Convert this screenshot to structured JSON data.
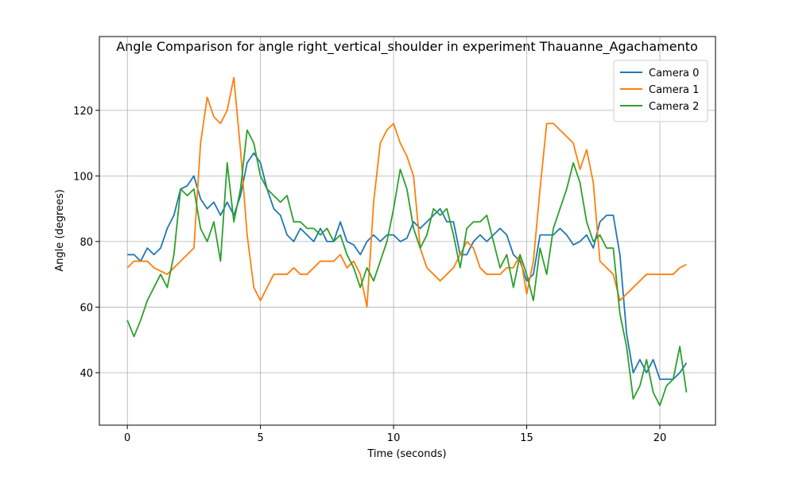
{
  "chart_data": {
    "type": "line",
    "title": "Angle Comparison for angle right_vertical_shoulder in experiment Thauanne_Agachamento",
    "x_label": "Time (seconds)",
    "y_label": "Angle (degrees)",
    "x": [
      0,
      0.25,
      0.5,
      0.75,
      1,
      1.25,
      1.5,
      1.75,
      2,
      2.25,
      2.5,
      2.75,
      3,
      3.25,
      3.5,
      3.75,
      4,
      4.25,
      4.5,
      4.75,
      5,
      5.25,
      5.5,
      5.75,
      6,
      6.25,
      6.5,
      6.75,
      7,
      7.25,
      7.5,
      7.75,
      8,
      8.25,
      8.5,
      8.75,
      9,
      9.25,
      9.5,
      9.75,
      10,
      10.25,
      10.5,
      10.75,
      11,
      11.25,
      11.5,
      11.75,
      12,
      12.25,
      12.5,
      12.75,
      13,
      13.25,
      13.5,
      13.75,
      14,
      14.25,
      14.5,
      14.75,
      15,
      15.25,
      15.5,
      15.75,
      16,
      16.25,
      16.5,
      16.75,
      17,
      17.25,
      17.5,
      17.75,
      18,
      18.25,
      18.5,
      18.75,
      19,
      19.25,
      19.5,
      19.75,
      20,
      20.25,
      20.5,
      20.75,
      21
    ],
    "series": [
      {
        "name": "Camera 0",
        "color": "#1f77b4",
        "values": [
          76,
          76,
          74,
          78,
          76,
          78,
          84,
          88,
          96,
          97,
          100,
          93,
          90,
          92,
          88,
          92,
          88,
          94,
          104,
          107,
          104,
          96,
          90,
          88,
          82,
          80,
          84,
          82,
          80,
          84,
          80,
          80,
          86,
          80,
          79,
          76,
          80,
          82,
          80,
          82,
          82,
          80,
          81,
          86,
          84,
          86,
          88,
          90,
          86,
          86,
          76,
          76,
          80,
          82,
          80,
          82,
          84,
          82,
          76,
          74,
          68,
          70,
          82,
          82,
          82,
          84,
          82,
          79,
          80,
          82,
          78,
          86,
          88,
          88,
          76,
          52,
          40,
          44,
          40,
          44,
          38,
          38,
          38,
          40,
          43
        ]
      },
      {
        "name": "Camera 1",
        "color": "#ff7f0e",
        "values": [
          72,
          74,
          74,
          74,
          72,
          71,
          70,
          72,
          74,
          76,
          78,
          110,
          124,
          118,
          116,
          120,
          130,
          108,
          82,
          66,
          62,
          66,
          70,
          70,
          70,
          72,
          70,
          70,
          72,
          74,
          74,
          74,
          76,
          72,
          74,
          70,
          60,
          92,
          110,
          114,
          116,
          110,
          106,
          100,
          78,
          72,
          70,
          68,
          70,
          72,
          76,
          80,
          78,
          72,
          70,
          70,
          70,
          72,
          72,
          76,
          64,
          74,
          96,
          116,
          116,
          114,
          112,
          110,
          102,
          108,
          98,
          74,
          72,
          70,
          62,
          64,
          66,
          68,
          70,
          70,
          70,
          70,
          70,
          72,
          73
        ]
      },
      {
        "name": "Camera 2",
        "color": "#2ca02c",
        "values": [
          56,
          51,
          56,
          62,
          66,
          70,
          66,
          76,
          96,
          94,
          96,
          84,
          80,
          86,
          74,
          104,
          86,
          96,
          114,
          110,
          100,
          96,
          94,
          92,
          94,
          86,
          86,
          84,
          84,
          82,
          84,
          80,
          82,
          76,
          72,
          66,
          72,
          68,
          74,
          80,
          90,
          102,
          96,
          84,
          78,
          82,
          90,
          88,
          90,
          82,
          72,
          84,
          86,
          86,
          88,
          80,
          72,
          76,
          66,
          76,
          70,
          62,
          78,
          70,
          84,
          90,
          96,
          104,
          98,
          86,
          80,
          82,
          78,
          78,
          58,
          48,
          32,
          36,
          44,
          34,
          30,
          36,
          38,
          48,
          34
        ]
      }
    ],
    "xlim": [
      -1.05,
      22.09
    ],
    "ylim": [
      24,
      142.5
    ],
    "xticks": [
      0,
      5,
      10,
      15,
      20
    ],
    "yticks": [
      40,
      60,
      80,
      100,
      120
    ],
    "grid": true,
    "legend": "upper right"
  }
}
